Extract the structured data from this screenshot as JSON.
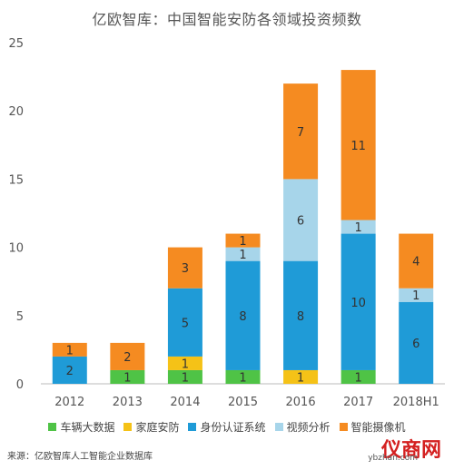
{
  "title": "亿欧智库：中国智能安防各领域投资频数",
  "source": "来源：亿欧智库人工智能企业数据库",
  "watermark": "仪商网",
  "watermark_sub": "ybzhan.com",
  "colors": {
    "车辆大数据": "#4fc346",
    "家庭安防": "#f5c217",
    "身份认证系统": "#1f9bd7",
    "视频分析": "#a7d5ea",
    "智能摄像机": "#f58b21"
  },
  "chart_data": {
    "type": "bar",
    "stacked": true,
    "title": "亿欧智库：中国智能安防各领域投资频数",
    "xlabel": "",
    "ylabel": "",
    "categories": [
      "2012",
      "2013",
      "2014",
      "2015",
      "2016",
      "2017",
      "2018H1"
    ],
    "ylim": [
      0,
      25
    ],
    "yticks": [
      0,
      5,
      10,
      15,
      20,
      25
    ],
    "grid": false,
    "legend": "bottom",
    "series": [
      {
        "name": "车辆大数据",
        "values": [
          0,
          1,
          1,
          1,
          0,
          1,
          0
        ]
      },
      {
        "name": "家庭安防",
        "values": [
          0,
          0,
          1,
          0,
          1,
          0,
          0
        ]
      },
      {
        "name": "身份认证系统",
        "values": [
          2,
          0,
          5,
          8,
          8,
          10,
          6
        ]
      },
      {
        "name": "视频分析",
        "values": [
          0,
          0,
          0,
          1,
          6,
          1,
          1
        ]
      },
      {
        "name": "智能摄像机",
        "values": [
          1,
          2,
          3,
          1,
          7,
          11,
          4
        ]
      }
    ]
  }
}
